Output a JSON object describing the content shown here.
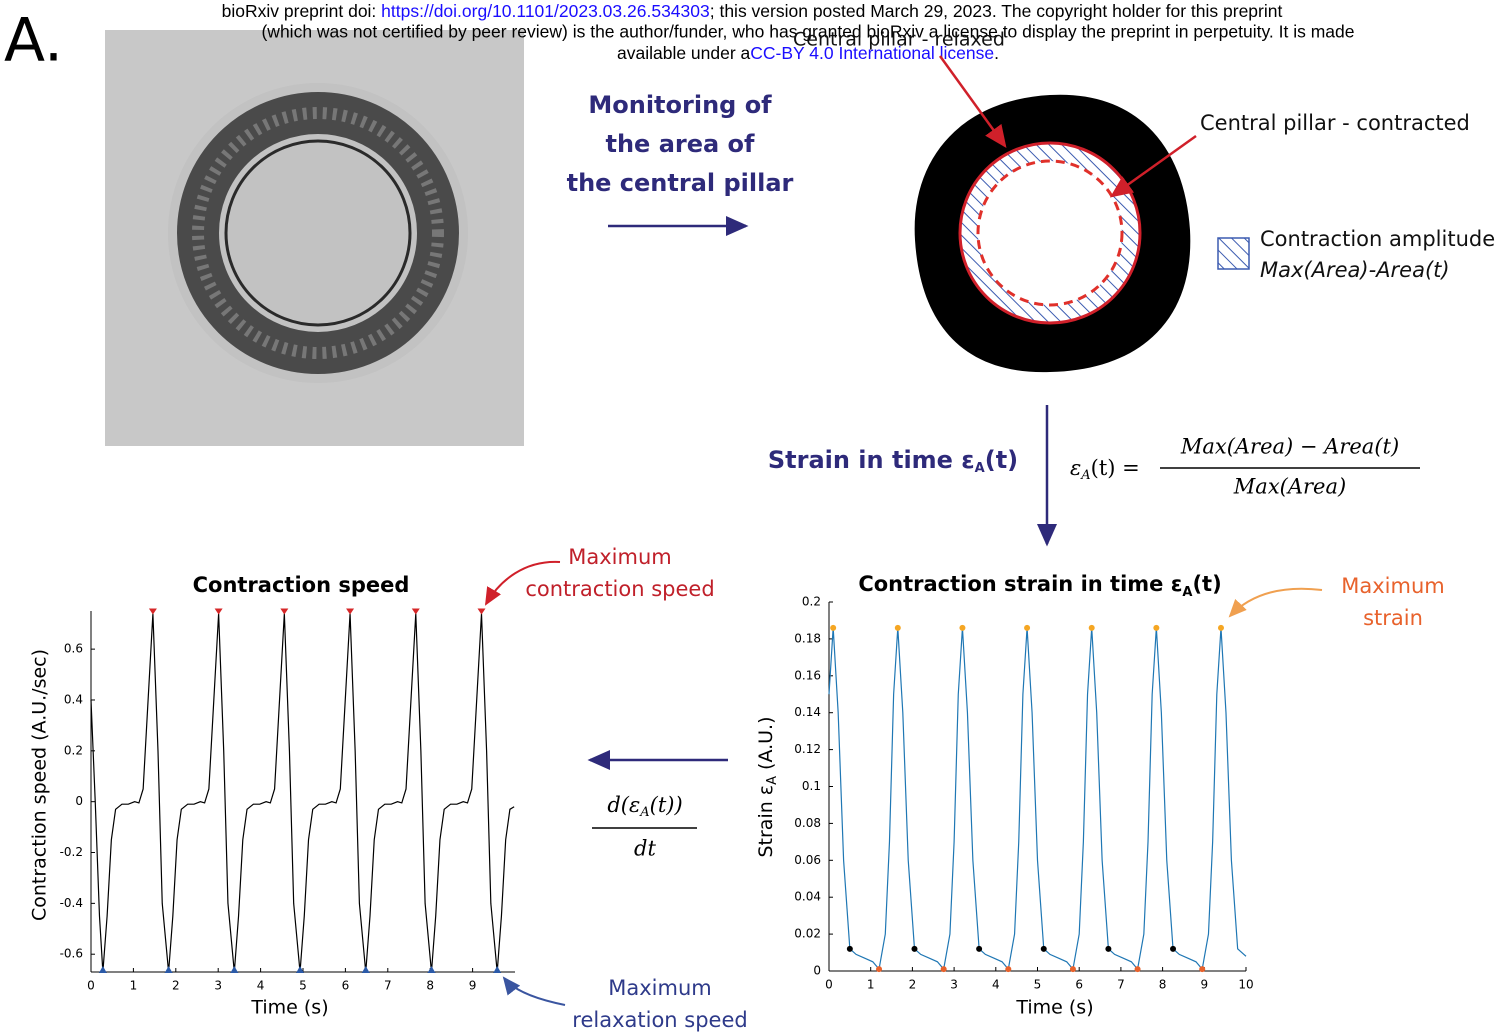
{
  "header": {
    "line1_pre": "bioRxiv preprint doi: ",
    "doi_link": "https://doi.org/10.1101/2023.03.26.534303",
    "line1_post": "; this version posted March 29, 2023. The copyright holder for this preprint",
    "line2": "(which was not certified by peer review) is the author/funder, who has granted bioRxiv a license to display the preprint in perpetuity. It is made",
    "line3_pre": "available under a",
    "license_link": "CC-BY 4.0 International license",
    "line3_post": "."
  },
  "panel_label": "A.",
  "diagram": {
    "monitoring": [
      "Monitoring of",
      "the area of",
      "the central pillar"
    ],
    "relaxed_label": "Central pillar - relaxed",
    "contracted_label": "Central pillar - contracted",
    "legend": {
      "title": "Contraction amplitude",
      "formula": "Max(Area)-Area(t)"
    },
    "strain_step": {
      "text": "Strain in time ε",
      "subscript": "A",
      "suffix": "(t)"
    },
    "strain_formula": {
      "lhs": "ε",
      "lhs_subscript": "A",
      "lhs_suffix": "(t) =",
      "numerator": "Max(Area) − Area(t)",
      "denominator": "Max(Area)"
    },
    "derivative": {
      "numerator_pre": "d(ε",
      "numerator_subscript": "A",
      "numerator_post": "(t))",
      "denominator": "dt"
    }
  },
  "chart_data": [
    {
      "type": "line",
      "title": "Contraction strain in time ε",
      "title_subscript": "A",
      "title_suffix": "(t)",
      "x_label": "Time (s)",
      "y_label": "Strain ε",
      "y_label_subscript": "A",
      "y_label_suffix": " (A.U.)",
      "annotation": [
        "Maximum",
        "strain"
      ],
      "xlim": [
        0,
        10
      ],
      "xticks": [
        0,
        1,
        2,
        3,
        4,
        5,
        6,
        7,
        8,
        9,
        10
      ],
      "ylim": [
        0,
        0.2
      ],
      "yticks": [
        0,
        0.02,
        0.04,
        0.06,
        0.08,
        0.1,
        0.12,
        0.14,
        0.16,
        0.18,
        0.2
      ],
      "series": [
        {
          "marker": "line",
          "color": "#1f77b4",
          "x": [
            0,
            0.1,
            0.22,
            0.35,
            0.5,
            0.65,
            0.85,
            1.05,
            1.2,
            1.35,
            1.45,
            1.55,
            1.65,
            1.77,
            1.9,
            2.05,
            2.2,
            2.4,
            2.6,
            2.75,
            2.9,
            3.0,
            3.1,
            3.2,
            3.32,
            3.45,
            3.6,
            3.75,
            3.95,
            4.15,
            4.3,
            4.45,
            4.55,
            4.65,
            4.75,
            4.87,
            5.0,
            5.15,
            5.3,
            5.5,
            5.7,
            5.85,
            6.0,
            6.1,
            6.2,
            6.3,
            6.42,
            6.55,
            6.7,
            6.85,
            7.05,
            7.25,
            7.4,
            7.55,
            7.65,
            7.75,
            7.85,
            7.97,
            8.1,
            8.25,
            8.4,
            8.6,
            8.8,
            8.95,
            9.1,
            9.2,
            9.3,
            9.4,
            9.52,
            9.65,
            9.8,
            9.95,
            10
          ],
          "values": [
            0.15,
            0.186,
            0.14,
            0.06,
            0.012,
            0.009,
            0.007,
            0.005,
            0.001,
            0.02,
            0.07,
            0.15,
            0.186,
            0.14,
            0.06,
            0.012,
            0.009,
            0.007,
            0.005,
            0.001,
            0.02,
            0.07,
            0.15,
            0.186,
            0.14,
            0.06,
            0.012,
            0.009,
            0.007,
            0.005,
            0.001,
            0.02,
            0.07,
            0.15,
            0.186,
            0.14,
            0.06,
            0.012,
            0.009,
            0.007,
            0.005,
            0.001,
            0.02,
            0.07,
            0.15,
            0.186,
            0.14,
            0.06,
            0.012,
            0.009,
            0.007,
            0.005,
            0.001,
            0.02,
            0.07,
            0.15,
            0.186,
            0.14,
            0.06,
            0.012,
            0.009,
            0.007,
            0.005,
            0.001,
            0.02,
            0.07,
            0.15,
            0.186,
            0.14,
            0.06,
            0.012,
            0.009,
            0.008
          ]
        },
        {
          "marker": "circle",
          "color": "#f5a623",
          "x": [
            0.1,
            1.65,
            3.2,
            4.75,
            6.3,
            7.85,
            9.4
          ],
          "values": [
            0.186,
            0.186,
            0.186,
            0.186,
            0.186,
            0.186,
            0.186
          ]
        },
        {
          "marker": "circle",
          "color": "#000000",
          "x": [
            0.5,
            2.05,
            3.6,
            5.15,
            6.7,
            8.25
          ],
          "values": [
            0.012,
            0.012,
            0.012,
            0.012,
            0.012,
            0.012
          ]
        },
        {
          "marker": "circle",
          "color": "#e8622c",
          "x": [
            1.2,
            2.75,
            4.3,
            5.85,
            7.4,
            8.95
          ],
          "values": [
            0.001,
            0.001,
            0.001,
            0.001,
            0.001,
            0.001
          ]
        }
      ]
    },
    {
      "type": "line",
      "title": "Contraction speed",
      "x_label": "Time (s)",
      "y_label": "Contraction speed (A.U./sec)",
      "annotation_top": [
        "Maximum",
        "contraction speed"
      ],
      "annotation_bottom": [
        "Maximum",
        "relaxation speed"
      ],
      "xlim": [
        0,
        10
      ],
      "xticks": [
        0,
        1,
        2,
        3,
        4,
        5,
        6,
        7,
        8,
        9
      ],
      "ylim": [
        -0.67,
        0.75
      ],
      "yticks": [
        -0.6,
        -0.4,
        -0.2,
        0,
        0.2,
        0.4,
        0.6
      ],
      "series": [
        {
          "marker": "line",
          "color": "#000000",
          "x": [
            0,
            0.1,
            0.2,
            0.28,
            0.38,
            0.48,
            0.58,
            0.73,
            0.88,
            1.03,
            1.13,
            1.23,
            1.33,
            1.46,
            1.58,
            1.68,
            1.83,
            1.93,
            2.03,
            2.13,
            2.28,
            2.43,
            2.58,
            2.68,
            2.78,
            2.88,
            3.01,
            3.13,
            3.23,
            3.38,
            3.48,
            3.58,
            3.68,
            3.83,
            3.98,
            4.13,
            4.23,
            4.33,
            4.43,
            4.56,
            4.68,
            4.78,
            4.93,
            5.03,
            5.13,
            5.23,
            5.38,
            5.53,
            5.68,
            5.78,
            5.88,
            5.98,
            6.11,
            6.23,
            6.33,
            6.48,
            6.58,
            6.68,
            6.78,
            6.93,
            7.08,
            7.23,
            7.33,
            7.43,
            7.53,
            7.66,
            7.78,
            7.88,
            8.03,
            8.13,
            8.23,
            8.33,
            8.48,
            8.63,
            8.78,
            8.88,
            8.98,
            9.08,
            9.21,
            9.33,
            9.43,
            9.58,
            9.68,
            9.78,
            9.88,
            9.98
          ],
          "values": [
            0.4,
            0,
            -0.45,
            -0.67,
            -0.45,
            -0.15,
            -0.03,
            -0.01,
            -0.01,
            0,
            -0.005,
            0.05,
            0.35,
            0.74,
            0.2,
            -0.4,
            -0.67,
            -0.45,
            -0.15,
            -0.03,
            -0.01,
            -0.01,
            0,
            -0.005,
            0.05,
            0.35,
            0.74,
            0.2,
            -0.4,
            -0.67,
            -0.45,
            -0.15,
            -0.03,
            -0.01,
            -0.01,
            0,
            -0.005,
            0.05,
            0.35,
            0.74,
            0.2,
            -0.4,
            -0.67,
            -0.45,
            -0.15,
            -0.03,
            -0.01,
            -0.01,
            0,
            -0.005,
            0.05,
            0.35,
            0.74,
            0.2,
            -0.4,
            -0.67,
            -0.45,
            -0.15,
            -0.03,
            -0.01,
            -0.01,
            0,
            -0.005,
            0.05,
            0.35,
            0.74,
            0.2,
            -0.4,
            -0.67,
            -0.45,
            -0.15,
            -0.03,
            -0.01,
            -0.01,
            0,
            -0.005,
            0.05,
            0.35,
            0.74,
            0.2,
            -0.4,
            -0.67,
            -0.45,
            -0.15,
            -0.03,
            -0.02
          ]
        },
        {
          "marker": "triangle-down",
          "color": "#d62728",
          "x": [
            1.46,
            3.01,
            4.56,
            6.11,
            7.66,
            9.21
          ],
          "values": [
            0.74,
            0.74,
            0.74,
            0.74,
            0.74,
            0.74
          ]
        },
        {
          "marker": "triangle-up",
          "color": "#2b5aa8",
          "x": [
            0.28,
            1.83,
            3.38,
            4.93,
            6.48,
            8.03,
            9.58
          ],
          "values": [
            -0.67,
            -0.67,
            -0.67,
            -0.67,
            -0.67,
            -0.67,
            -0.67
          ]
        }
      ]
    }
  ]
}
